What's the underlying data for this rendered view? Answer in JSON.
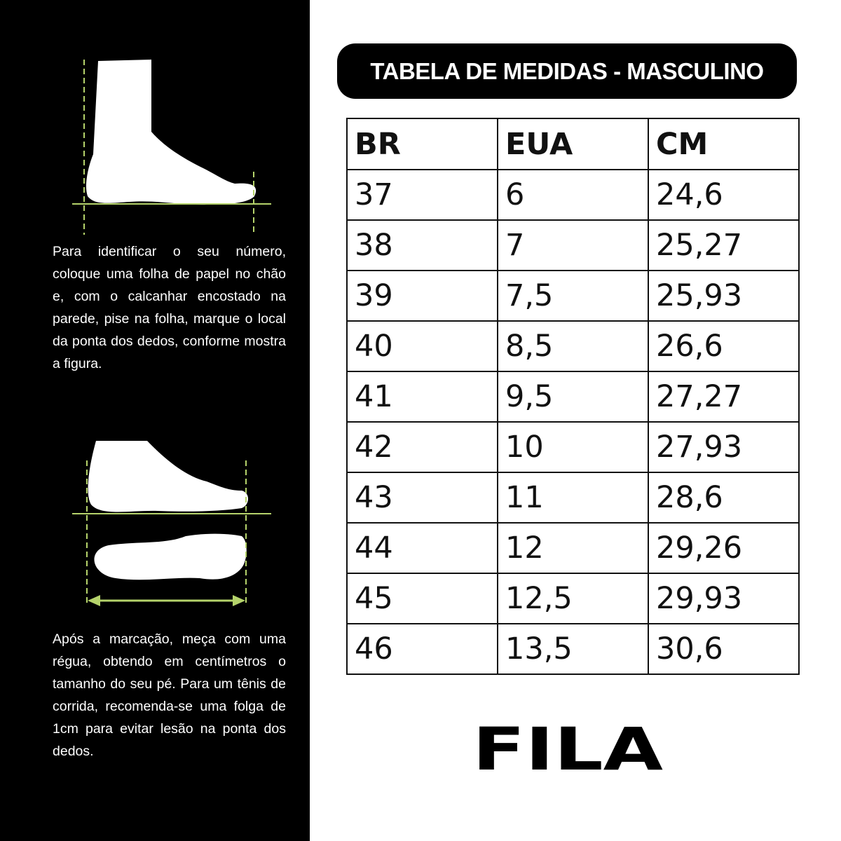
{
  "instructions": {
    "step1": "Para identificar o seu número, coloque uma folha de papel no chão e, com o calcanhar encostado na parede, pise na folha, marque o local da ponta dos dedos, conforme mostra a figura.",
    "step2": "Após a marcação, meça com uma régua, obtendo em centímetros o tamanho do seu pé. Para um tênis de corrida, recomenda-se uma folga de 1cm para evitar lesão na ponta dos dedos."
  },
  "title": "TABELA DE MEDIDAS - MASCULINO",
  "table": {
    "headers": [
      "BR",
      "EUA",
      "CM"
    ],
    "rows": [
      [
        "37",
        "6",
        "24,6"
      ],
      [
        "38",
        "7",
        "25,27"
      ],
      [
        "39",
        "7,5",
        "25,93"
      ],
      [
        "40",
        "8,5",
        "26,6"
      ],
      [
        "41",
        "9,5",
        "27,27"
      ],
      [
        "42",
        "10",
        "27,93"
      ],
      [
        "43",
        "11",
        "28,6"
      ],
      [
        "44",
        "12",
        "29,26"
      ],
      [
        "45",
        "12,5",
        "29,93"
      ],
      [
        "46",
        "13,5",
        "30,6"
      ]
    ]
  },
  "brand": "FILA",
  "colors": {
    "accent": "#b5d36b",
    "panel": "#000000"
  }
}
